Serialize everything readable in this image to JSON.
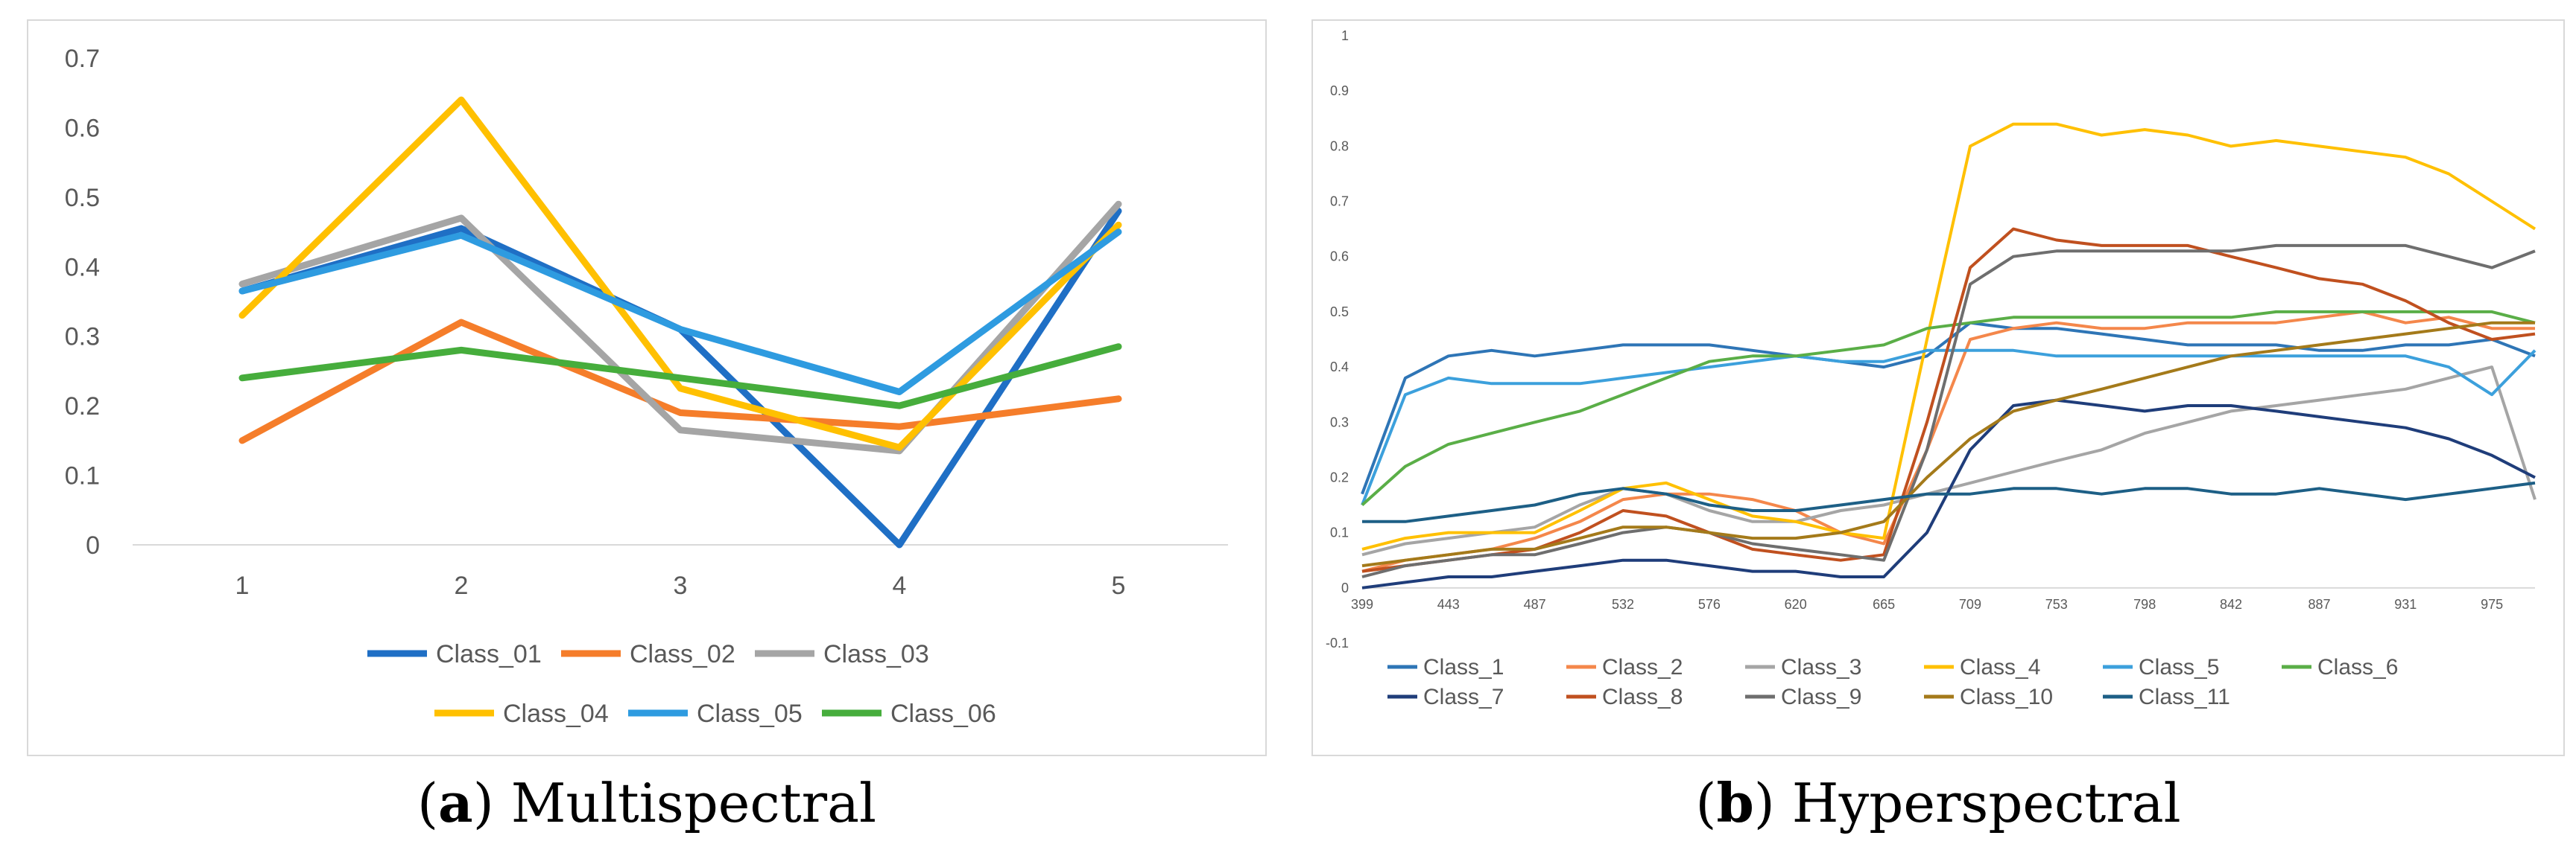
{
  "chart_data": [
    {
      "type": "line",
      "title": "",
      "xlabel": "",
      "ylabel": "",
      "categories": [
        "1",
        "2",
        "3",
        "4",
        "5"
      ],
      "ylim": [
        0,
        0.7
      ],
      "yticks": [
        "0",
        "0.1",
        "0.2",
        "0.3",
        "0.4",
        "0.5",
        "0.6",
        "0.7"
      ],
      "grid": false,
      "legend": "bottom",
      "series": [
        {
          "name": "Class_01",
          "color": "#1f6fc5",
          "values": [
            0.365,
            0.455,
            0.31,
            0.0,
            0.48
          ]
        },
        {
          "name": "Class_02",
          "color": "#f57d2a",
          "values": [
            0.15,
            0.32,
            0.19,
            0.17,
            0.21
          ]
        },
        {
          "name": "Class_03",
          "color": "#a5a5a5",
          "values": [
            0.375,
            0.47,
            0.165,
            0.135,
            0.49
          ]
        },
        {
          "name": "Class_04",
          "color": "#ffc000",
          "values": [
            0.33,
            0.64,
            0.225,
            0.14,
            0.46
          ]
        },
        {
          "name": "Class_05",
          "color": "#2e9be0",
          "values": [
            0.365,
            0.445,
            0.31,
            0.22,
            0.45
          ]
        },
        {
          "name": "Class_06",
          "color": "#46ad3c",
          "values": [
            0.24,
            0.28,
            0.24,
            0.2,
            0.285
          ]
        }
      ]
    },
    {
      "type": "line",
      "title": "",
      "xlabel": "",
      "ylabel": "",
      "x": [
        399,
        421,
        443,
        465,
        487,
        510,
        532,
        554,
        576,
        598,
        620,
        643,
        665,
        687,
        709,
        731,
        753,
        776,
        798,
        820,
        842,
        865,
        887,
        909,
        931,
        953,
        975,
        997
      ],
      "xticks": [
        "399",
        "443",
        "487",
        "532",
        "576",
        "620",
        "665",
        "709",
        "753",
        "798",
        "842",
        "887",
        "931",
        "975"
      ],
      "ylim": [
        -0.1,
        1
      ],
      "yticks": [
        "-0.1",
        "0",
        "0.1",
        "0.2",
        "0.3",
        "0.4",
        "0.5",
        "0.6",
        "0.7",
        "0.8",
        "0.9",
        "1"
      ],
      "grid": false,
      "legend": "bottom",
      "series": [
        {
          "name": "Class_1",
          "color": "#2e75b6",
          "values": [
            0.17,
            0.38,
            0.42,
            0.43,
            0.42,
            0.43,
            0.44,
            0.44,
            0.44,
            0.43,
            0.42,
            0.41,
            0.4,
            0.42,
            0.48,
            0.47,
            0.47,
            0.46,
            0.45,
            0.44,
            0.44,
            0.44,
            0.43,
            0.43,
            0.44,
            0.44,
            0.45,
            0.42
          ]
        },
        {
          "name": "Class_2",
          "color": "#f4874b",
          "values": [
            0.03,
            0.05,
            0.06,
            0.07,
            0.09,
            0.12,
            0.16,
            0.17,
            0.17,
            0.16,
            0.14,
            0.1,
            0.08,
            0.25,
            0.45,
            0.47,
            0.48,
            0.47,
            0.47,
            0.48,
            0.48,
            0.48,
            0.49,
            0.5,
            0.48,
            0.49,
            0.47,
            0.47
          ]
        },
        {
          "name": "Class_3",
          "color": "#a5a5a5",
          "values": [
            0.06,
            0.08,
            0.09,
            0.1,
            0.11,
            0.15,
            0.18,
            0.17,
            0.14,
            0.12,
            0.12,
            0.14,
            0.15,
            0.17,
            0.19,
            0.21,
            0.23,
            0.25,
            0.28,
            0.3,
            0.32,
            0.33,
            0.34,
            0.35,
            0.36,
            0.38,
            0.4,
            0.16
          ]
        },
        {
          "name": "Class_4",
          "color": "#ffc000",
          "values": [
            0.07,
            0.09,
            0.1,
            0.1,
            0.1,
            0.14,
            0.18,
            0.19,
            0.16,
            0.13,
            0.12,
            0.1,
            0.09,
            0.45,
            0.8,
            0.84,
            0.84,
            0.82,
            0.83,
            0.82,
            0.8,
            0.81,
            0.8,
            0.79,
            0.78,
            0.75,
            0.7,
            0.65
          ]
        },
        {
          "name": "Class_5",
          "color": "#3ca0dc",
          "values": [
            0.15,
            0.35,
            0.38,
            0.37,
            0.37,
            0.37,
            0.38,
            0.39,
            0.4,
            0.41,
            0.42,
            0.41,
            0.41,
            0.43,
            0.43,
            0.43,
            0.42,
            0.42,
            0.42,
            0.42,
            0.42,
            0.42,
            0.42,
            0.42,
            0.42,
            0.4,
            0.35,
            0.43
          ]
        },
        {
          "name": "Class_6",
          "color": "#5aae47",
          "values": [
            0.15,
            0.22,
            0.26,
            0.28,
            0.3,
            0.32,
            0.35,
            0.38,
            0.41,
            0.42,
            0.42,
            0.43,
            0.44,
            0.47,
            0.48,
            0.49,
            0.49,
            0.49,
            0.49,
            0.49,
            0.49,
            0.5,
            0.5,
            0.5,
            0.5,
            0.5,
            0.5,
            0.48
          ]
        },
        {
          "name": "Class_7",
          "color": "#1f3d7a",
          "values": [
            0.0,
            0.01,
            0.02,
            0.02,
            0.03,
            0.04,
            0.05,
            0.05,
            0.04,
            0.03,
            0.03,
            0.02,
            0.02,
            0.1,
            0.25,
            0.33,
            0.34,
            0.33,
            0.32,
            0.33,
            0.33,
            0.32,
            0.31,
            0.3,
            0.29,
            0.27,
            0.24,
            0.2
          ]
        },
        {
          "name": "Class_8",
          "color": "#c0501f",
          "values": [
            0.03,
            0.04,
            0.05,
            0.06,
            0.07,
            0.1,
            0.14,
            0.13,
            0.1,
            0.07,
            0.06,
            0.05,
            0.06,
            0.3,
            0.58,
            0.65,
            0.63,
            0.62,
            0.62,
            0.62,
            0.6,
            0.58,
            0.56,
            0.55,
            0.52,
            0.48,
            0.45,
            0.46
          ]
        },
        {
          "name": "Class_9",
          "color": "#6e6e6e",
          "values": [
            0.02,
            0.04,
            0.05,
            0.06,
            0.06,
            0.08,
            0.1,
            0.11,
            0.1,
            0.08,
            0.07,
            0.06,
            0.05,
            0.25,
            0.55,
            0.6,
            0.61,
            0.61,
            0.61,
            0.61,
            0.61,
            0.62,
            0.62,
            0.62,
            0.62,
            0.6,
            0.58,
            0.61
          ]
        },
        {
          "name": "Class_10",
          "color": "#a47a1a",
          "values": [
            0.04,
            0.05,
            0.06,
            0.07,
            0.07,
            0.09,
            0.11,
            0.11,
            0.1,
            0.09,
            0.09,
            0.1,
            0.12,
            0.2,
            0.27,
            0.32,
            0.34,
            0.36,
            0.38,
            0.4,
            0.42,
            0.43,
            0.44,
            0.45,
            0.46,
            0.47,
            0.48,
            0.48
          ]
        },
        {
          "name": "Class_11",
          "color": "#1d5f86",
          "values": [
            0.12,
            0.12,
            0.13,
            0.14,
            0.15,
            0.17,
            0.18,
            0.17,
            0.15,
            0.14,
            0.14,
            0.15,
            0.16,
            0.17,
            0.17,
            0.18,
            0.18,
            0.17,
            0.18,
            0.18,
            0.17,
            0.17,
            0.18,
            0.17,
            0.16,
            0.17,
            0.18,
            0.19
          ]
        }
      ]
    }
  ],
  "captions": {
    "a_letter": "a",
    "a_text": "Multispectral",
    "b_letter": "b",
    "b_text": "Hyperspectral"
  }
}
